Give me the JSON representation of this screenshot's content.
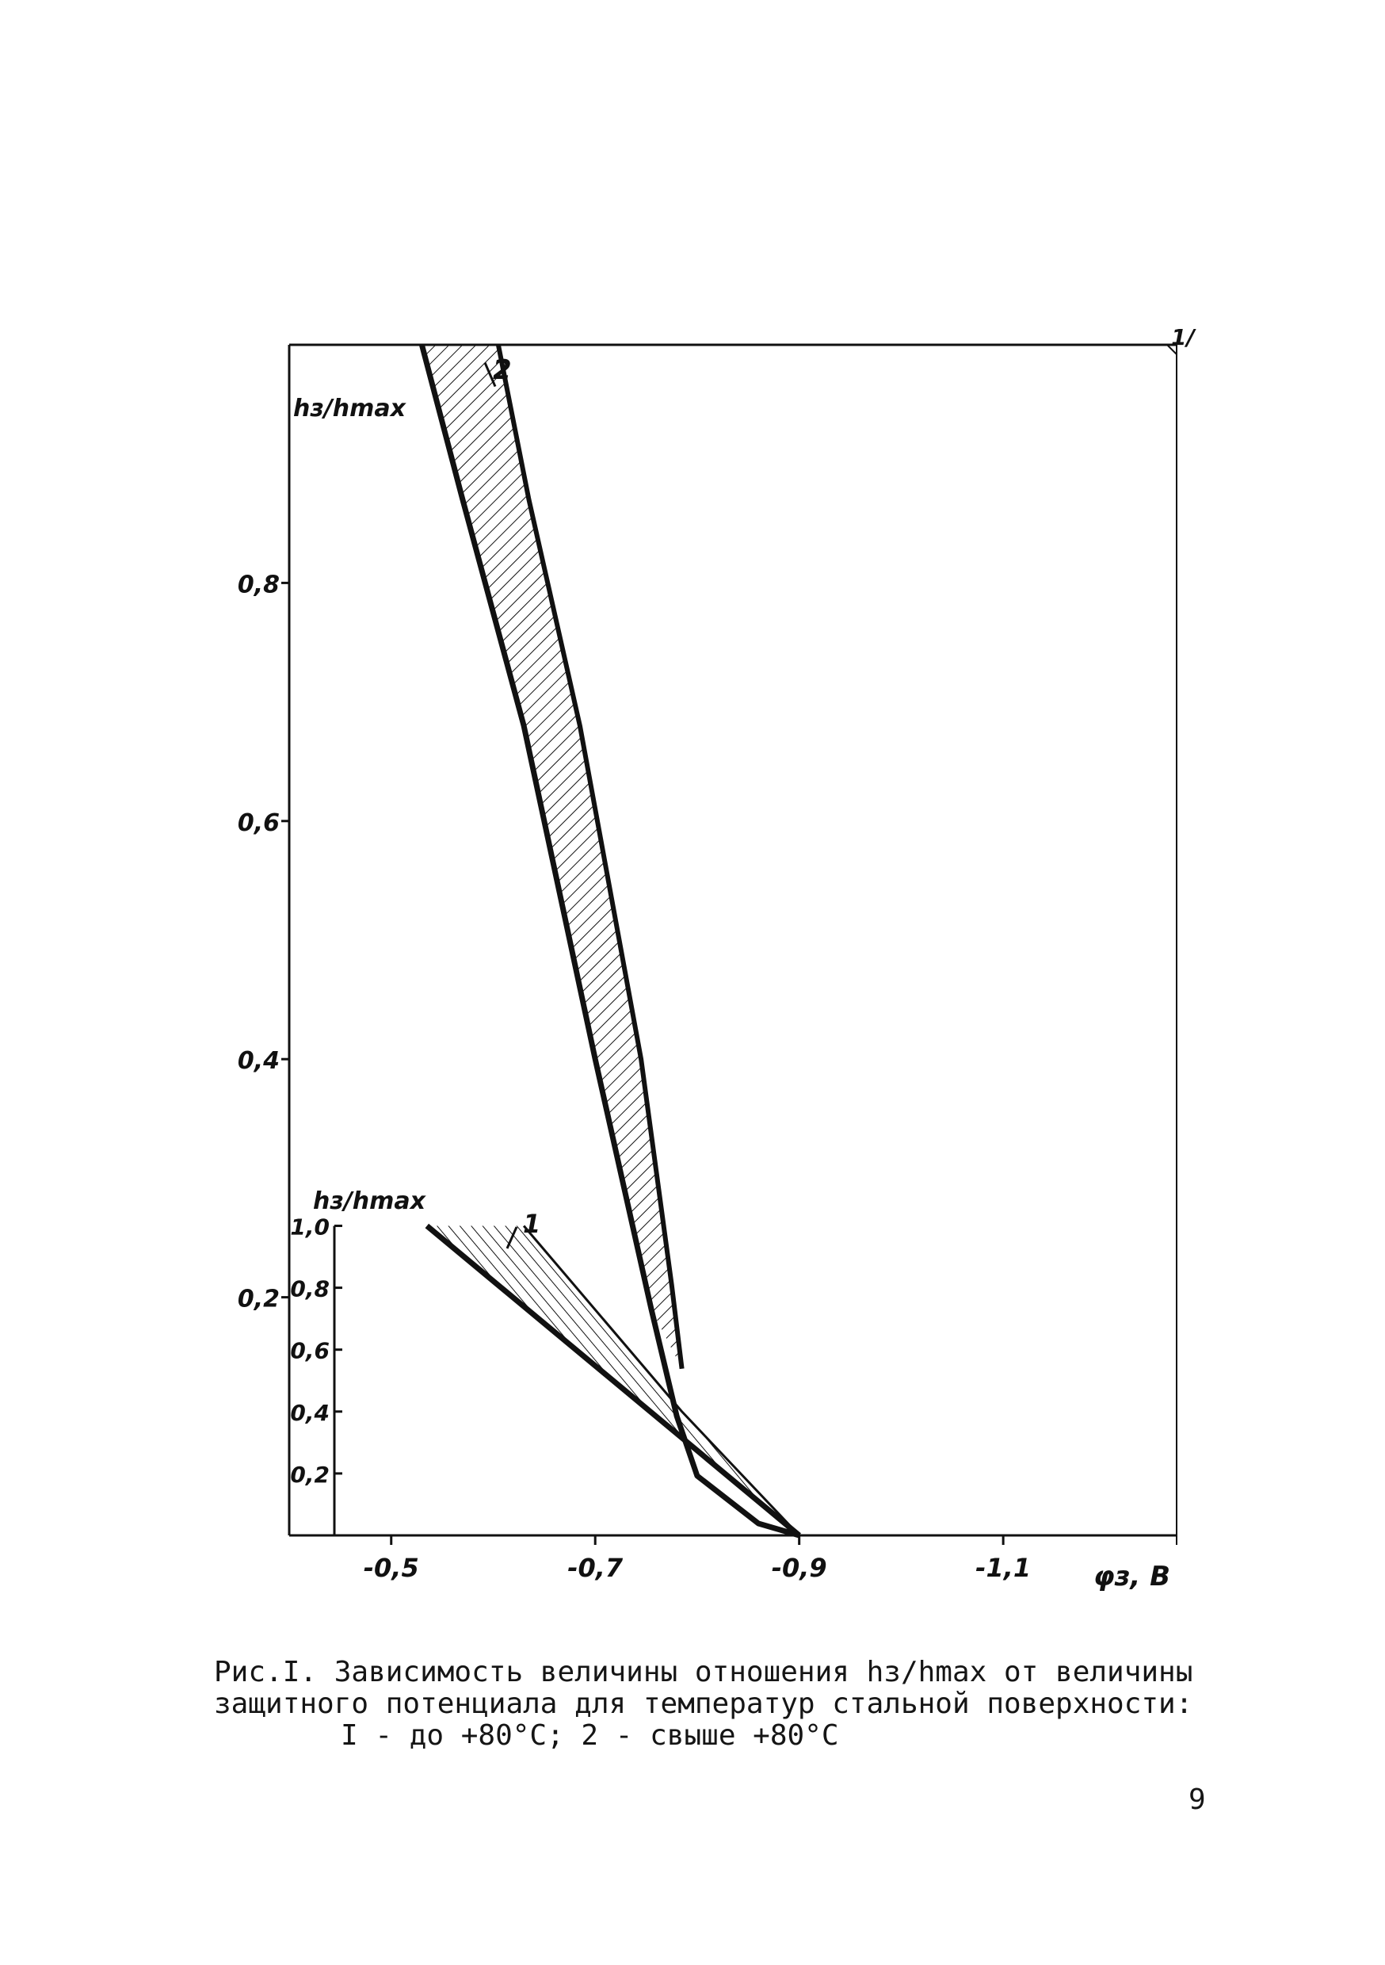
{
  "corner_mark": "1/",
  "chart_data": [
    {
      "type": "area",
      "title": "",
      "xlabel": "φз, В",
      "ylabel": "hз/hmax",
      "x_ticks": [
        "-0,5",
        "-0,7",
        "-0,9",
        "-1,1"
      ],
      "y_ticks": [
        "0,2",
        "0,4",
        "0,6",
        "0,8"
      ],
      "xlim": [
        -0.4,
        -1.27
      ],
      "ylim": [
        0,
        1.0
      ],
      "series": [
        {
          "name": "2",
          "label_position": "top",
          "boundary_left": {
            "x": [
              -0.53,
              -0.57,
              -0.63,
              -0.7,
              -0.755,
              -0.78,
              -0.8,
              -0.86,
              -0.9
            ],
            "y": [
              1.0,
              0.87,
              0.68,
              0.4,
              0.19,
              0.1,
              0.05,
              0.01,
              0.0
            ]
          },
          "boundary_right": {
            "x": [
              -0.605,
              -0.635,
              -0.685,
              -0.745,
              -0.775,
              -0.785
            ],
            "y": [
              1.0,
              0.87,
              0.68,
              0.4,
              0.21,
              0.14
            ]
          }
        },
        {
          "name": "1",
          "inset_scale_label": "hз/hmax",
          "inset_ticks": [
            "0,2",
            "0,4",
            "0,6",
            "0,8",
            "1,0"
          ],
          "boundary_left": {
            "x": [
              -0.535,
              -0.9
            ],
            "y": [
              1.0,
              0.0
            ]
          },
          "boundary_right": {
            "x": [
              -0.63,
              -0.785,
              -0.9
            ],
            "y": [
              1.0,
              0.4,
              0.0
            ]
          },
          "hatch_top": 1.0
        }
      ]
    }
  ],
  "caption": {
    "line1": "Рис.I. Зависимость величины отношения hз/hmax  от  величины",
    "line2": "защитного потенциала для температур стальной поверхности:",
    "line3": "I - до +80°С; 2 - свыше +80°С"
  },
  "page_number": "9"
}
